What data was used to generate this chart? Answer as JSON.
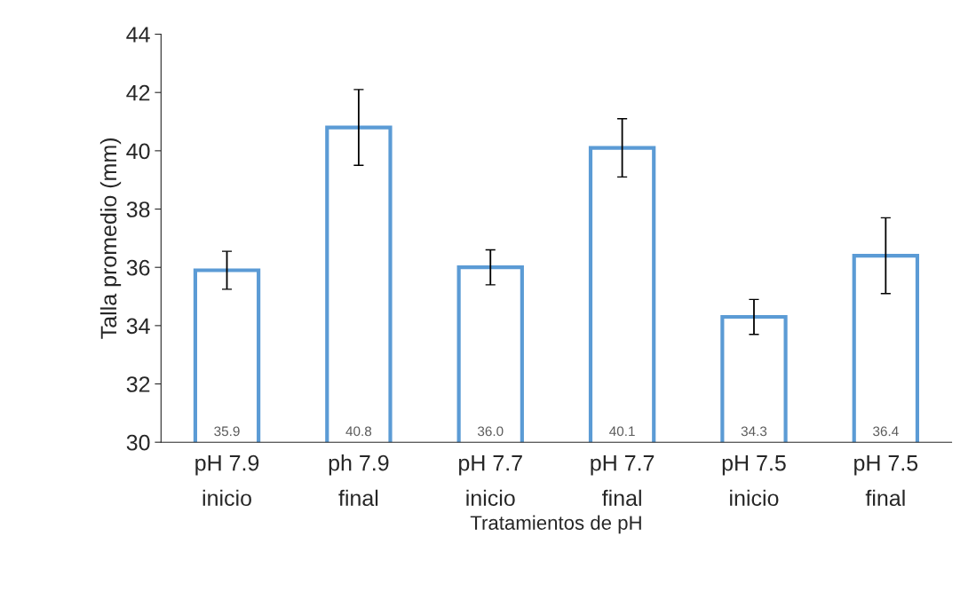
{
  "chart_data": {
    "type": "bar",
    "xlabel": "Tratamientos de pH",
    "ylabel": "Talla promedio (mm)",
    "categories": [
      "pH 7.9\ninicio",
      "ph 7.9\nfinal",
      "pH 7.7\ninicio",
      "pH 7.7\nfinal",
      "pH 7.5\ninicio",
      "pH 7.5\nfinal"
    ],
    "values": [
      35.9,
      40.8,
      36.0,
      40.1,
      34.3,
      36.4
    ],
    "value_labels": [
      "35.9",
      "40.8",
      "36.0",
      "40.1",
      "34.3",
      "36.4"
    ],
    "errors": [
      0.65,
      1.3,
      0.6,
      1.0,
      0.6,
      1.3
    ],
    "color": "#5b9bd5",
    "ylim": [
      30,
      44
    ],
    "yticks": [
      30,
      32,
      34,
      36,
      38,
      40,
      42,
      44
    ],
    "grid": false,
    "legend": false
  }
}
